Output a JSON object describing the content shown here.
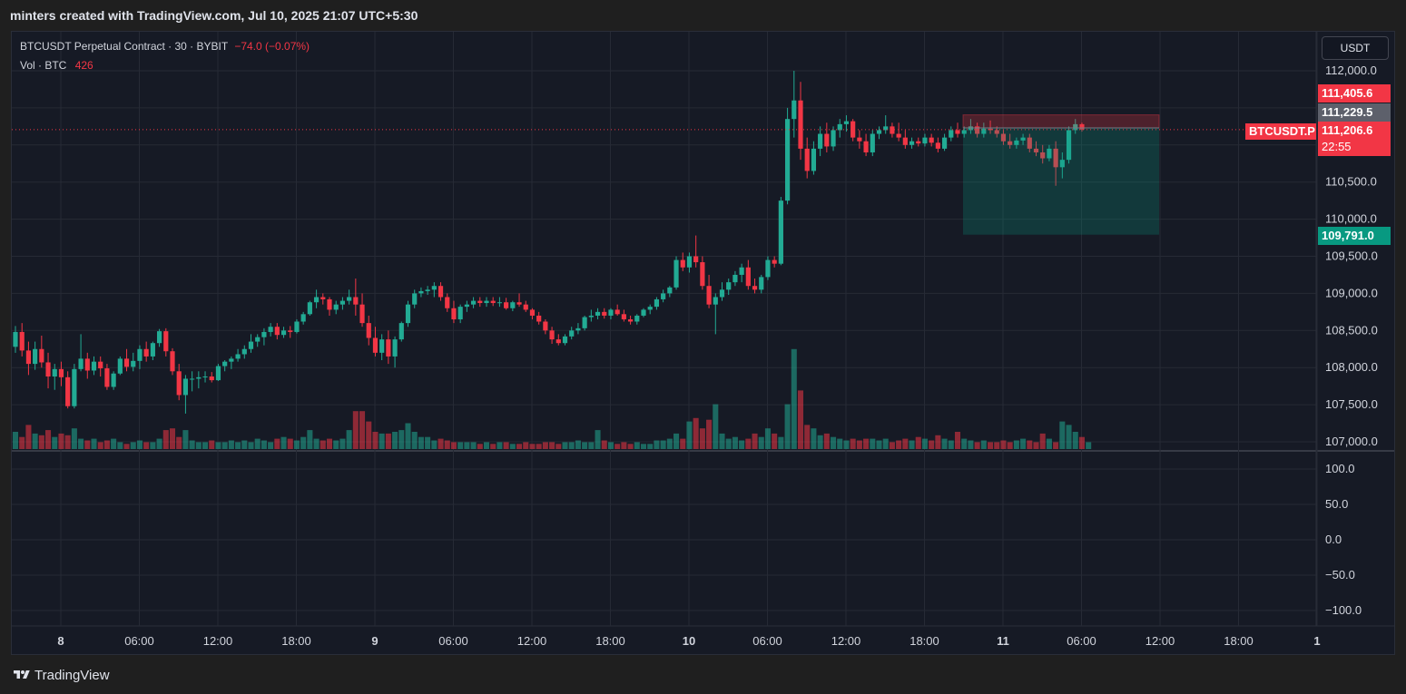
{
  "header": {
    "caption": "minters created with TradingView.com, Jul 10, 2025 21:07 UTC+5:30"
  },
  "legend": {
    "symbol": "BTCUSDT Perpetual Contract · 30 · BYBIT",
    "change": "−74.0 (−0.07%)",
    "volume_label": "Vol · BTC",
    "volume_value": "426"
  },
  "currency_button": "USDT",
  "price_axis": {
    "ticks": [
      "112,000.0",
      "111,500.0",
      "111,000.0",
      "110,500.0",
      "110,000.0",
      "109,500.0",
      "109,000.0",
      "108,500.0",
      "108,000.0",
      "107,500.0",
      "107,000.0"
    ]
  },
  "indicator_axis": {
    "ticks": [
      "100.0",
      "50.0",
      "0.0",
      "−50.0",
      "−100.0"
    ]
  },
  "time_axis": {
    "labels": [
      {
        "text": "8",
        "bold": true
      },
      {
        "text": "06:00"
      },
      {
        "text": "12:00"
      },
      {
        "text": "18:00"
      },
      {
        "text": "9",
        "bold": true
      },
      {
        "text": "06:00"
      },
      {
        "text": "12:00"
      },
      {
        "text": "18:00"
      },
      {
        "text": "10",
        "bold": true
      },
      {
        "text": "06:00"
      },
      {
        "text": "12:00"
      },
      {
        "text": "18:00"
      },
      {
        "text": "11",
        "bold": true
      },
      {
        "text": "06:00"
      },
      {
        "text": "12:00"
      },
      {
        "text": "18:00"
      },
      {
        "text": "1",
        "bold": true
      }
    ]
  },
  "price_tags": {
    "stop_loss": "111,405.6",
    "entry": "111,229.5",
    "symbol_label": "BTCUSDT.P",
    "last_price": "111,206.6",
    "countdown": "22:55",
    "target": "109,791.0"
  },
  "position_tool": {
    "entry": 111229.5,
    "stop": 111405.6,
    "target": 109791.0
  },
  "last_price": 111206.6,
  "colors": {
    "up": "#22ab94",
    "down": "#f23645",
    "bg": "#161a25",
    "grid": "#262a35"
  },
  "candles": [
    [
      108280,
      108560,
      108200,
      108480
    ],
    [
      108480,
      108600,
      108150,
      108230
    ],
    [
      108230,
      108350,
      107900,
      108050
    ],
    [
      108050,
      108350,
      107970,
      108250
    ],
    [
      108250,
      108430,
      108000,
      108070
    ],
    [
      108070,
      108200,
      107720,
      107880
    ],
    [
      107880,
      108050,
      107700,
      107980
    ],
    [
      107980,
      108080,
      107750,
      107870
    ],
    [
      107870,
      107950,
      107450,
      107480
    ],
    [
      107480,
      108050,
      107450,
      107980
    ],
    [
      107980,
      108450,
      107950,
      108120
    ],
    [
      108120,
      108200,
      107850,
      107960
    ],
    [
      107960,
      108150,
      107900,
      108080
    ],
    [
      108080,
      108150,
      107880,
      107990
    ],
    [
      107990,
      108050,
      107700,
      107740
    ],
    [
      107740,
      107950,
      107700,
      107920
    ],
    [
      107920,
      108150,
      107900,
      108120
    ],
    [
      108120,
      108250,
      107950,
      108010
    ],
    [
      108010,
      108200,
      107950,
      108090
    ],
    [
      108090,
      108300,
      107980,
      108250
    ],
    [
      108250,
      108350,
      108080,
      108150
    ],
    [
      108150,
      108350,
      108100,
      108330
    ],
    [
      108330,
      108520,
      108280,
      108490
    ],
    [
      108490,
      108530,
      108150,
      108220
    ],
    [
      108220,
      108260,
      107900,
      107950
    ],
    [
      107950,
      108050,
      107560,
      107630
    ],
    [
      107630,
      107900,
      107380,
      107850
    ],
    [
      107850,
      107950,
      107680,
      107850
    ],
    [
      107850,
      107950,
      107720,
      107870
    ],
    [
      107870,
      107950,
      107800,
      107880
    ],
    [
      107880,
      107940,
      107800,
      107830
    ],
    [
      107830,
      108050,
      107820,
      108020
    ],
    [
      108020,
      108100,
      107950,
      108080
    ],
    [
      108080,
      108150,
      107980,
      108120
    ],
    [
      108120,
      108250,
      108080,
      108180
    ],
    [
      108180,
      108300,
      108120,
      108250
    ],
    [
      108250,
      108450,
      108200,
      108350
    ],
    [
      108350,
      108450,
      108280,
      108410
    ],
    [
      108410,
      108530,
      108300,
      108480
    ],
    [
      108480,
      108600,
      108420,
      108550
    ],
    [
      108550,
      108600,
      108380,
      108440
    ],
    [
      108440,
      108550,
      108400,
      108500
    ],
    [
      108500,
      108560,
      108400,
      108480
    ],
    [
      108480,
      108650,
      108460,
      108620
    ],
    [
      108620,
      108750,
      108580,
      108720
    ],
    [
      108720,
      108900,
      108700,
      108880
    ],
    [
      108880,
      109050,
      108800,
      108950
    ],
    [
      108950,
      109000,
      108850,
      108920
    ],
    [
      108920,
      108950,
      108700,
      108780
    ],
    [
      108780,
      108900,
      108720,
      108850
    ],
    [
      108850,
      108950,
      108780,
      108900
    ],
    [
      108900,
      109050,
      108850,
      108950
    ],
    [
      108950,
      109200,
      108700,
      108850
    ],
    [
      108850,
      109000,
      108550,
      108600
    ],
    [
      108600,
      108700,
      108300,
      108400
    ],
    [
      108400,
      108550,
      108150,
      108200
    ],
    [
      108200,
      108450,
      108100,
      108380
    ],
    [
      108380,
      108500,
      108050,
      108150
    ],
    [
      108150,
      108420,
      108000,
      108380
    ],
    [
      108380,
      108620,
      108350,
      108600
    ],
    [
      108600,
      108900,
      108550,
      108850
    ],
    [
      108850,
      109050,
      108800,
      109000
    ],
    [
      109000,
      109080,
      108950,
      109030
    ],
    [
      109030,
      109100,
      108980,
      109050
    ],
    [
      109050,
      109150,
      108950,
      109100
    ],
    [
      109100,
      109150,
      108900,
      108950
    ],
    [
      108950,
      109000,
      108750,
      108800
    ],
    [
      108800,
      108900,
      108600,
      108650
    ],
    [
      108650,
      108850,
      108600,
      108820
    ],
    [
      108820,
      108900,
      108750,
      108850
    ],
    [
      108850,
      108950,
      108800,
      108900
    ],
    [
      108900,
      108950,
      108820,
      108870
    ],
    [
      108870,
      108950,
      108820,
      108900
    ],
    [
      108900,
      108950,
      108830,
      108870
    ],
    [
      108870,
      108950,
      108820,
      108880
    ],
    [
      108880,
      108940,
      108780,
      108800
    ],
    [
      108800,
      108900,
      108760,
      108880
    ],
    [
      108880,
      109000,
      108820,
      108850
    ],
    [
      108850,
      108900,
      108750,
      108780
    ],
    [
      108780,
      108800,
      108650,
      108700
    ],
    [
      108700,
      108750,
      108580,
      108620
    ],
    [
      108620,
      108650,
      108450,
      108500
    ],
    [
      108500,
      108550,
      108320,
      108380
    ],
    [
      108380,
      108450,
      108300,
      108330
    ],
    [
      108330,
      108450,
      108300,
      108420
    ],
    [
      108420,
      108550,
      108380,
      108500
    ],
    [
      108500,
      108600,
      108450,
      108530
    ],
    [
      108530,
      108700,
      108500,
      108680
    ],
    [
      108680,
      108780,
      108620,
      108700
    ],
    [
      108700,
      108800,
      108650,
      108750
    ],
    [
      108750,
      108800,
      108660,
      108700
    ],
    [
      108700,
      108800,
      108650,
      108780
    ],
    [
      108780,
      108850,
      108700,
      108720
    ],
    [
      108720,
      108780,
      108620,
      108650
    ],
    [
      108650,
      108700,
      108580,
      108620
    ],
    [
      108620,
      108720,
      108580,
      108700
    ],
    [
      108700,
      108800,
      108680,
      108780
    ],
    [
      108780,
      108850,
      108720,
      108820
    ],
    [
      108820,
      108950,
      108780,
      108920
    ],
    [
      108920,
      109050,
      108880,
      109000
    ],
    [
      109000,
      109100,
      108950,
      109080
    ],
    [
      109080,
      109500,
      109050,
      109450
    ],
    [
      109450,
      109550,
      109300,
      109350
    ],
    [
      109350,
      109550,
      109280,
      109500
    ],
    [
      109500,
      109780,
      109350,
      109420
    ],
    [
      109420,
      109500,
      109050,
      109100
    ],
    [
      109100,
      109250,
      108800,
      108850
    ],
    [
      108850,
      109000,
      108450,
      108950
    ],
    [
      108950,
      109150,
      108900,
      109050
    ],
    [
      109050,
      109200,
      108980,
      109150
    ],
    [
      109150,
      109300,
      109100,
      109250
    ],
    [
      109250,
      109400,
      109150,
      109350
    ],
    [
      109350,
      109450,
      109050,
      109100
    ],
    [
      109100,
      109200,
      109000,
      109050
    ],
    [
      109050,
      109250,
      109000,
      109220
    ],
    [
      109220,
      109500,
      109180,
      109450
    ],
    [
      109450,
      109500,
      109350,
      109400
    ],
    [
      109400,
      110300,
      109380,
      110250
    ],
    [
      110250,
      111500,
      110200,
      111350
    ],
    [
      111350,
      112000,
      111100,
      111600
    ],
    [
      111600,
      111850,
      110800,
      110950
    ],
    [
      110950,
      111100,
      110550,
      110650
    ],
    [
      110650,
      111050,
      110600,
      110950
    ],
    [
      110950,
      111250,
      110850,
      111150
    ],
    [
      111150,
      111300,
      110900,
      110980
    ],
    [
      110980,
      111250,
      110920,
      111200
    ],
    [
      111200,
      111350,
      111100,
      111280
    ],
    [
      111280,
      111400,
      111180,
      111320
    ],
    [
      111320,
      111350,
      111050,
      111100
    ],
    [
      111100,
      111200,
      110950,
      111050
    ],
    [
      111050,
      111150,
      110850,
      110900
    ],
    [
      110900,
      111200,
      110850,
      111150
    ],
    [
      111150,
      111250,
      111080,
      111200
    ],
    [
      111200,
      111400,
      111150,
      111250
    ],
    [
      111250,
      111300,
      111100,
      111150
    ],
    [
      111150,
      111300,
      111050,
      111100
    ],
    [
      111100,
      111200,
      110950,
      111000
    ],
    [
      111000,
      111100,
      110950,
      111050
    ],
    [
      111050,
      111100,
      110980,
      111020
    ],
    [
      111020,
      111150,
      110980,
      111100
    ],
    [
      111100,
      111150,
      110980,
      111030
    ],
    [
      111030,
      111100,
      110900,
      110950
    ],
    [
      110950,
      111150,
      110920,
      111100
    ],
    [
      111100,
      111250,
      111050,
      111200
    ],
    [
      111200,
      111300,
      111100,
      111150
    ],
    [
      111150,
      111250,
      111100,
      111200
    ],
    [
      111200,
      111350,
      111150,
      111250
    ],
    [
      111250,
      111300,
      111100,
      111150
    ],
    [
      111150,
      111300,
      111100,
      111220
    ],
    [
      111220,
      111330,
      111150,
      111200
    ],
    [
      111200,
      111250,
      111100,
      111150
    ],
    [
      111150,
      111200,
      111000,
      111050
    ],
    [
      111050,
      111150,
      110950,
      111000
    ],
    [
      111000,
      111100,
      110950,
      111060
    ],
    [
      111060,
      111150,
      111000,
      111100
    ],
    [
      111100,
      111150,
      110900,
      110950
    ],
    [
      110950,
      111050,
      110850,
      110900
    ],
    [
      110900,
      111000,
      110750,
      110820
    ],
    [
      110820,
      111000,
      110780,
      110950
    ],
    [
      110950,
      111050,
      110450,
      110700
    ],
    [
      110700,
      110900,
      110550,
      110800
    ],
    [
      110800,
      111250,
      110750,
      111200
    ],
    [
      111200,
      111350,
      111150,
      111280
    ],
    [
      111280,
      111300,
      111180,
      111207
    ]
  ],
  "volumes": [
    0.5,
    0.35,
    0.7,
    0.45,
    0.4,
    0.55,
    0.35,
    0.45,
    0.4,
    0.6,
    0.3,
    0.25,
    0.3,
    0.2,
    0.25,
    0.3,
    0.2,
    0.15,
    0.2,
    0.25,
    0.2,
    0.2,
    0.3,
    0.55,
    0.6,
    0.35,
    0.55,
    0.25,
    0.2,
    0.2,
    0.25,
    0.2,
    0.2,
    0.25,
    0.2,
    0.25,
    0.2,
    0.3,
    0.25,
    0.2,
    0.3,
    0.35,
    0.3,
    0.25,
    0.35,
    0.55,
    0.3,
    0.25,
    0.3,
    0.25,
    0.3,
    0.55,
    1.1,
    1.1,
    0.8,
    0.5,
    0.45,
    0.45,
    0.5,
    0.55,
    0.75,
    0.5,
    0.35,
    0.35,
    0.25,
    0.3,
    0.25,
    0.2,
    0.2,
    0.2,
    0.2,
    0.15,
    0.2,
    0.15,
    0.2,
    0.2,
    0.15,
    0.15,
    0.2,
    0.15,
    0.15,
    0.2,
    0.2,
    0.15,
    0.2,
    0.2,
    0.25,
    0.2,
    0.2,
    0.55,
    0.25,
    0.2,
    0.15,
    0.2,
    0.15,
    0.2,
    0.15,
    0.15,
    0.25,
    0.25,
    0.3,
    0.45,
    0.3,
    0.8,
    0.9,
    0.6,
    0.85,
    1.3,
    0.45,
    0.3,
    0.35,
    0.25,
    0.3,
    0.45,
    0.35,
    0.6,
    0.45,
    0.35,
    1.3,
    2.9,
    1.7,
    0.7,
    0.6,
    0.4,
    0.45,
    0.35,
    0.3,
    0.25,
    0.3,
    0.25,
    0.3,
    0.3,
    0.25,
    0.3,
    0.2,
    0.25,
    0.3,
    0.25,
    0.35,
    0.3,
    0.25,
    0.4,
    0.3,
    0.25,
    0.5,
    0.3,
    0.25,
    0.2,
    0.25,
    0.2,
    0.2,
    0.25,
    0.2,
    0.25,
    0.3,
    0.25,
    0.2,
    0.45,
    0.3,
    0.2,
    0.8,
    0.7,
    0.5,
    0.35,
    0.2
  ]
}
